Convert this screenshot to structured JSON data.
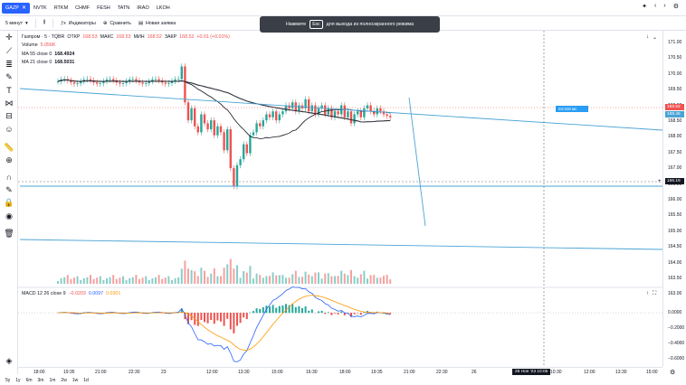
{
  "symbols": [
    {
      "label": "GAZP",
      "active": true
    },
    {
      "label": "NVTK",
      "active": false
    },
    {
      "label": "RTKM",
      "active": false
    },
    {
      "label": "CHMF",
      "active": false
    },
    {
      "label": "FESH",
      "active": false
    },
    {
      "label": "TATN",
      "active": false
    },
    {
      "label": "IRAO",
      "active": false
    },
    {
      "label": "LKOH",
      "active": false
    }
  ],
  "toolbar": {
    "interval": "5 минут",
    "chart_type_icon": "candles-icon",
    "indicators_label": "Индикаторы",
    "compare_label": "Сравнить",
    "new_order_label": "Новая заявка"
  },
  "toast": {
    "before": "Нажмите",
    "key": "Esc",
    "after": "для выхода из полноэкранного режима"
  },
  "legend": {
    "symbol": "Газпром · 5 · TQBR",
    "open_label": "ОТКР",
    "open": "168.53",
    "high_label": "МАКС",
    "high": "168.53",
    "low_label": "МИН",
    "low": "168.52",
    "close_label": "ЗАКР",
    "close": "168.52",
    "change": "+0.01 (+0.01%)",
    "volume_label": "Volume",
    "volume": "5.056K",
    "ma55_label": "MA 55 close 0",
    "ma55": "168.4924",
    "ma21_label": "MA 21 close 0",
    "ma21": "168.5031",
    "macd_label": "MACD 12 26 close 9",
    "macd_hist": "−0.0203",
    "macd_macd": "0.0097",
    "macd_signal": "0.0301"
  },
  "price_axis": {
    "ticks": [
      "171.00",
      "170.50",
      "170.00",
      "169.50",
      "169.00",
      "168.50",
      "168.00",
      "167.50",
      "167.00",
      "166.50",
      "166.00",
      "165.50",
      "165.00",
      "164.50",
      "164.00",
      "163.50",
      "163.00"
    ],
    "current_price": "168.52",
    "ma_label": "168.46",
    "crosshair_price": "166.19",
    "countdown": "04:318 мс"
  },
  "macd_axis": {
    "ticks": [
      "0.0000",
      "−0.2000",
      "−0.4000",
      "−0.6000"
    ]
  },
  "time_axis": {
    "ticks": [
      "18:00",
      "19:35",
      "21:00",
      "22:30",
      "23",
      "12:00",
      "13:30",
      "15:00",
      "16:30",
      "18:00",
      "19:35",
      "21:00",
      "22:30",
      "26",
      "09:00",
      "10:30",
      "12:00",
      "13:30",
      "15:00"
    ],
    "crosshair_label": "26 Ноя '23 10:05"
  },
  "ranges": [
    "5y",
    "1y",
    "6m",
    "3m",
    "1m",
    "2w",
    "1w",
    "1d"
  ],
  "colors": {
    "up": "#26a69a",
    "down": "#ef5350",
    "accent": "#2962ff",
    "ma21": "#131722",
    "ma55": "#2b2f38",
    "macd": "#2962ff",
    "signal": "#ff9800",
    "trend": "#4aa3d6"
  },
  "left_tools": [
    "crosshair-icon",
    "trendline-icon",
    "fib-icon",
    "brush-icon",
    "text-icon",
    "pattern-icon",
    "forecast-icon",
    "emoji-icon",
    "ruler-icon",
    "zoom-icon",
    "magnet-icon",
    "lock-draw-icon",
    "lock-icon",
    "eye-icon",
    "trash-icon"
  ]
}
